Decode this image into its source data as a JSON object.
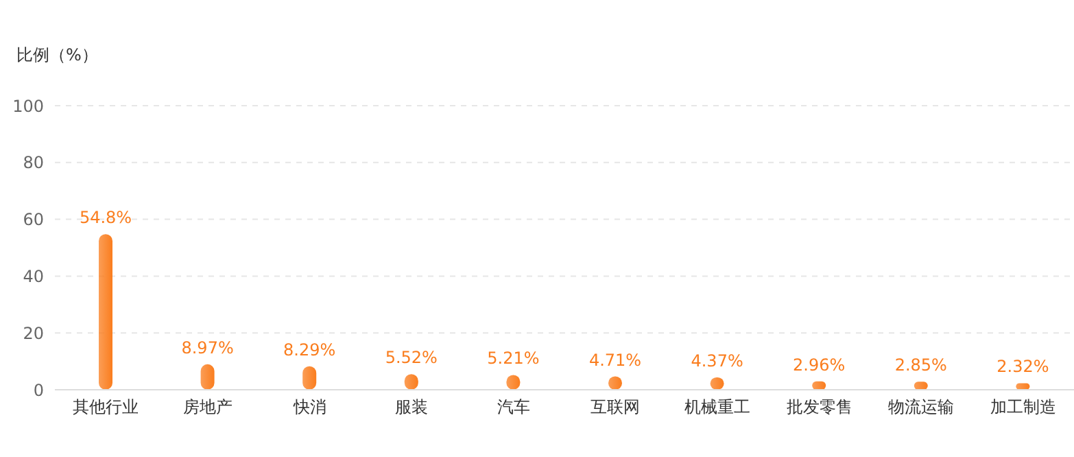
{
  "chart_data": {
    "type": "bar",
    "ylabel": "比例（%）",
    "categories": [
      "其他行业",
      "房地产",
      "快消",
      "服装",
      "汽车",
      "互联网",
      "机械重工",
      "批发零售",
      "物流运输",
      "加工制造"
    ],
    "values": [
      54.8,
      8.97,
      8.29,
      5.52,
      5.21,
      4.71,
      4.37,
      2.96,
      2.85,
      2.32
    ],
    "value_labels": [
      "54.8%",
      "8.97%",
      "8.29%",
      "5.52%",
      "5.21%",
      "4.71%",
      "4.37%",
      "2.96%",
      "2.85%",
      "2.32%"
    ],
    "color": "#fa7d1e",
    "ylim": [
      0,
      100
    ],
    "yticks": [
      0,
      20,
      40,
      60,
      80,
      100
    ],
    "grid": "y"
  }
}
